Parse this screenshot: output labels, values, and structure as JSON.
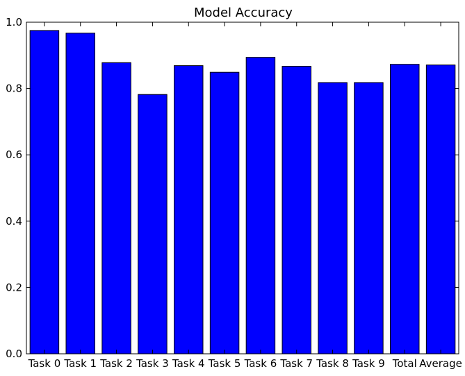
{
  "chart_data": {
    "type": "bar",
    "title": "Model Accuracy",
    "xlabel": "",
    "ylabel": "",
    "categories": [
      "Task 0",
      "Task 1",
      "Task 2",
      "Task 3",
      "Task 4",
      "Task 5",
      "Task 6",
      "Task 7",
      "Task 8",
      "Task 9",
      "Total",
      "Average"
    ],
    "values": [
      0.975,
      0.967,
      0.878,
      0.782,
      0.869,
      0.849,
      0.894,
      0.867,
      0.818,
      0.818,
      0.873,
      0.871
    ],
    "ylim": [
      0.0,
      1.0
    ],
    "yticks": [
      "0.0",
      "0.2",
      "0.4",
      "0.6",
      "0.8",
      "1.0"
    ],
    "grid": false,
    "colors": {
      "bar_fill": "#0000ff",
      "bar_edge": "#000000",
      "axes_edge": "#000000",
      "background": "#ffffff"
    }
  }
}
